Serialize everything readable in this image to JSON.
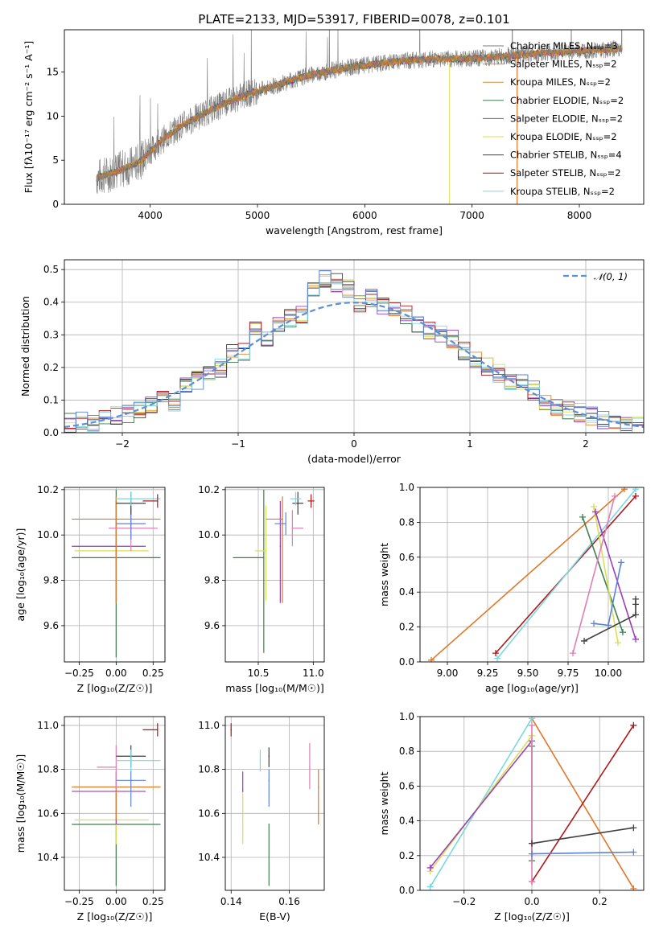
{
  "title": "PLATE=2133, MJD=53917, FIBERID=0078, z=0.101",
  "colors": {
    "Chabrier MILES": "#7a7a7a",
    "Salpeter MILES": "#e8802f",
    "Kroupa MILES": "#d9893a",
    "Chabrier ELODIE": "#3f7f4f",
    "Salpeter ELODIE": "#9a3fb5",
    "Kroupa ELODIE": "#d8df55",
    "Chabrier STELIB": "#404040",
    "Salpeter STELIB": "#b01818",
    "Kroupa STELIB": "#7ad8e0",
    "extra_blue": "#5b84d6",
    "extra_pink": "#e07fb5",
    "extra_orange": "#e0782a",
    "gaussian": "#5b8fd6"
  },
  "chart_data": [
    {
      "type": "line",
      "id": "spectrum",
      "xlabel": "wavelength [Angstrom, rest frame]",
      "ylabel": "Flux [fλ10⁻¹⁷ erg cm⁻² s⁻¹ A⁻¹]",
      "xlim": [
        3200,
        8600
      ],
      "ylim": [
        0,
        19.8
      ],
      "xticks": [
        "4000",
        "5000",
        "6000",
        "7000",
        "8000"
      ],
      "yticks": [
        "0",
        "5",
        "10",
        "15"
      ],
      "legend": [
        "Chabrier MILES, N_SSP=3",
        "Salpeter MILES, N_SSP=2",
        "Kroupa MILES, N_SSP=2",
        "Chabrier ELODIE, N_SSP=2",
        "Salpeter ELODIE, N_SSP=2",
        "Kroupa ELODIE, N_SSP=2",
        "Chabrier STELIB, N_SSP=4",
        "Salpeter STELIB, N_SSP=2",
        "Kroupa STELIB, N_SSP=2"
      ],
      "legend_display": [
        "Chabrier MILES, Nₛₛₚ=3",
        "Salpeter MILES, Nₛₛₚ=2",
        "Kroupa MILES, Nₛₛₚ=2",
        "Chabrier ELODIE, Nₛₛₚ=2",
        "Salpeter ELODIE, Nₛₛₚ=2",
        "Kroupa ELODIE, Nₛₛₚ=2",
        "Chabrier STELIB, Nₛₛₚ=4",
        "Salpeter STELIB, Nₛₛₚ=2",
        "Kroupa STELIB, Nₛₛₚ=2"
      ],
      "legend_position": "top-right",
      "model_trend": {
        "x": [
          3500,
          3700,
          3900,
          4100,
          4300,
          4500,
          4700,
          4900,
          5100,
          5300,
          5500,
          5700,
          5900,
          6100,
          6300,
          6500,
          6700,
          6900,
          7100,
          7300,
          7500,
          7700,
          7900,
          8100,
          8300,
          8400
        ],
        "y": [
          3.0,
          3.8,
          4.8,
          7.2,
          9.0,
          10.3,
          11.5,
          12.5,
          13.2,
          14.0,
          14.7,
          15.2,
          15.6,
          15.9,
          16.2,
          16.4,
          16.5,
          16.5,
          16.6,
          16.8,
          17.0,
          17.2,
          17.3,
          17.5,
          17.6,
          17.7
        ]
      },
      "spikes_to_zero": [
        6790,
        7420
      ]
    },
    {
      "type": "bar",
      "id": "residuals",
      "xlabel": "(data-model)/error",
      "ylabel": "Normed distribution",
      "xlim": [
        -2.5,
        2.5
      ],
      "ylim": [
        0,
        0.53
      ],
      "xticks": [
        "−2",
        "−1",
        "0",
        "1",
        "2"
      ],
      "yticks": [
        "0.0",
        "0.1",
        "0.2",
        "0.3",
        "0.4",
        "0.5"
      ],
      "legend": [
        "𝒩(0, 1)"
      ],
      "legend_position": "top-right",
      "bins": [
        -2.5,
        -2.4,
        -2.3,
        -2.2,
        -2.1,
        -2.0,
        -1.9,
        -1.8,
        -1.7,
        -1.6,
        -1.5,
        -1.4,
        -1.3,
        -1.2,
        -1.1,
        -1.0,
        -0.9,
        -0.8,
        -0.7,
        -0.6,
        -0.5,
        -0.4,
        -0.3,
        -0.2,
        -0.1,
        0.0,
        0.1,
        0.2,
        0.3,
        0.4,
        0.5,
        0.6,
        0.7,
        0.8,
        0.9,
        1.0,
        1.1,
        1.2,
        1.3,
        1.4,
        1.5,
        1.6,
        1.7,
        1.8,
        1.9,
        2.0,
        2.1,
        2.2,
        2.3,
        2.4
      ],
      "values": [
        0.03,
        0.04,
        0.03,
        0.04,
        0.05,
        0.06,
        0.07,
        0.09,
        0.1,
        0.09,
        0.14,
        0.16,
        0.19,
        0.2,
        0.24,
        0.25,
        0.32,
        0.28,
        0.33,
        0.35,
        0.36,
        0.44,
        0.47,
        0.46,
        0.44,
        0.4,
        0.41,
        0.39,
        0.38,
        0.36,
        0.33,
        0.31,
        0.3,
        0.29,
        0.25,
        0.22,
        0.2,
        0.18,
        0.16,
        0.15,
        0.13,
        0.1,
        0.08,
        0.07,
        0.06,
        0.05,
        0.04,
        0.04,
        0.03,
        0.03
      ]
    },
    {
      "type": "scatter",
      "id": "age-vs-Z",
      "xlabel": "Z [log₁₀(Z/Z☉)]",
      "ylabel": "age  [log₁₀(age/yr)]",
      "xlim": [
        -0.35,
        0.33
      ],
      "ylim": [
        9.44,
        10.21
      ],
      "xticks": [
        "−0.25",
        "0.00",
        "0.25"
      ],
      "yticks": [
        "9.6",
        "9.8",
        "10.0",
        "10.2"
      ],
      "points": [
        {
          "x": 0.0,
          "y": 9.9,
          "xerr": [
            0.3,
            0.3
          ],
          "yerr": [
            0.44,
            0.3
          ],
          "color": "#3f7f4f"
        },
        {
          "x": 0.0,
          "y": 9.93,
          "xerr": [
            0.28,
            0.22
          ],
          "yerr": [
            0.23,
            0.2
          ],
          "color": "#d8df55"
        },
        {
          "x": 0.0,
          "y": 9.95,
          "xerr": [
            0.3,
            0.2
          ],
          "yerr": [
            0.25,
            0.2
          ],
          "color": "#9a3fb5"
        },
        {
          "x": 0.0,
          "y": 10.07,
          "xerr": [
            0.3,
            0.3
          ],
          "yerr": [
            0.37,
            0.1
          ],
          "color": "#e0782a"
        },
        {
          "x": 0.1,
          "y": 10.03,
          "xerr": [
            0.15,
            0.18
          ],
          "yerr": [
            0.1,
            0.1
          ],
          "color": "#e07fb5"
        },
        {
          "x": 0.1,
          "y": 10.05,
          "xerr": [
            0.1,
            0.1
          ],
          "yerr": [
            0.07,
            0.07
          ],
          "color": "#5b84d6"
        },
        {
          "x": 0.1,
          "y": 10.14,
          "xerr": [
            0.1,
            0.1
          ],
          "yerr": [
            0.05,
            0.05
          ],
          "color": "#404040"
        },
        {
          "x": 0.1,
          "y": 10.16,
          "xerr": [
            0.1,
            0.2
          ],
          "yerr": [
            0.03,
            0.03
          ],
          "color": "#7ad8e0"
        },
        {
          "x": 0.28,
          "y": 10.15,
          "xerr": [
            0.1,
            0.0
          ],
          "yerr": [
            0.03,
            0.03
          ],
          "color": "#b01818"
        }
      ]
    },
    {
      "type": "scatter",
      "id": "age-vs-mass",
      "xlabel": "mass [log₁₀(M/M☉)]",
      "ylabel": "",
      "xlim": [
        10.2,
        11.1
      ],
      "ylim": [
        9.44,
        10.21
      ],
      "xticks": [
        "10.5",
        "11.0"
      ],
      "yticks": [
        "9.6",
        "9.8",
        "10.0",
        "10.2"
      ],
      "points": [
        {
          "x": 10.55,
          "y": 9.9,
          "xerr": [
            0.28,
            0.0
          ],
          "yerr": [
            0.42,
            0.3
          ],
          "color": "#3f7f4f"
        },
        {
          "x": 10.57,
          "y": 9.93,
          "xerr": [
            0.1,
            0.0
          ],
          "yerr": [
            0.22,
            0.2
          ],
          "color": "#d8df55"
        },
        {
          "x": 10.7,
          "y": 9.95,
          "xerr": [
            0.0,
            0.0
          ],
          "yerr": [
            0.25,
            0.2
          ],
          "color": "#9a3fb5"
        },
        {
          "x": 10.72,
          "y": 10.07,
          "xerr": [
            0.15,
            0.0
          ],
          "yerr": [
            0.37,
            0.1
          ],
          "color": "#e0782a"
        },
        {
          "x": 10.81,
          "y": 10.03,
          "xerr": [
            0.0,
            0.1
          ],
          "yerr": [
            0.08,
            0.08
          ],
          "color": "#e07fb5"
        },
        {
          "x": 10.75,
          "y": 10.05,
          "xerr": [
            0.1,
            0.0
          ],
          "yerr": [
            0.05,
            0.05
          ],
          "color": "#5b84d6"
        },
        {
          "x": 10.86,
          "y": 10.14,
          "xerr": [
            0.05,
            0.05
          ],
          "yerr": [
            0.05,
            0.05
          ],
          "color": "#404040"
        },
        {
          "x": 10.84,
          "y": 10.16,
          "xerr": [
            0.05,
            0.05
          ],
          "yerr": [
            0.03,
            0.03
          ],
          "color": "#7ad8e0"
        },
        {
          "x": 10.98,
          "y": 10.15,
          "xerr": [
            0.03,
            0.03
          ],
          "yerr": [
            0.03,
            0.03
          ],
          "color": "#b01818"
        }
      ]
    },
    {
      "type": "line",
      "id": "weight-vs-age",
      "xlabel": "age  [log₁₀(age/yr)]",
      "ylabel": "mass weight",
      "xlim": [
        8.83,
        10.22
      ],
      "ylim": [
        0,
        1
      ],
      "xticks": [
        "9.00",
        "9.25",
        "9.50",
        "9.75",
        "10.00"
      ],
      "yticks": [
        "0.0",
        "0.2",
        "0.4",
        "0.6",
        "0.8",
        "1.0"
      ],
      "series": [
        {
          "color": "#e0782a",
          "x": [
            8.9,
            10.1
          ],
          "y": [
            0.01,
            0.99
          ]
        },
        {
          "color": "#b01818",
          "x": [
            9.3,
            10.17
          ],
          "y": [
            0.05,
            0.95
          ]
        },
        {
          "color": "#7ad8e0",
          "x": [
            9.31,
            10.17
          ],
          "y": [
            0.02,
            0.99
          ]
        },
        {
          "color": "#3f7f4f",
          "x": [
            9.84,
            10.09
          ],
          "y": [
            0.83,
            0.17
          ]
        },
        {
          "color": "#d8df55",
          "x": [
            9.91,
            10.06
          ],
          "y": [
            0.89,
            0.11
          ]
        },
        {
          "color": "#9a3fb5",
          "x": [
            9.92,
            10.17
          ],
          "y": [
            0.86,
            0.13
          ]
        },
        {
          "color": "#e07fb5",
          "x": [
            9.78,
            10.04
          ],
          "y": [
            0.05,
            0.95
          ]
        },
        {
          "color": "#5b84d6",
          "x": [
            9.91,
            10.0,
            10.08
          ],
          "y": [
            0.22,
            0.21,
            0.57
          ]
        },
        {
          "color": "#404040",
          "x": [
            9.85,
            10.17,
            10.17,
            10.17
          ],
          "y": [
            0.12,
            0.27,
            0.33,
            0.36
          ]
        }
      ]
    },
    {
      "type": "scatter",
      "id": "mass-vs-Z",
      "xlabel": "Z [log₁₀(Z/Z☉)]",
      "ylabel": "mass [log₁₀(M/M☉)]",
      "xlim": [
        -0.35,
        0.33
      ],
      "ylim": [
        10.25,
        11.04
      ],
      "xticks": [
        "−0.25",
        "0.00",
        "0.25"
      ],
      "yticks": [
        "10.4",
        "10.6",
        "10.8",
        "11.0"
      ],
      "points": [
        {
          "x": 0.0,
          "y": 10.55,
          "xerr": [
            0.3,
            0.3
          ],
          "yerr": [
            0.28,
            0.0
          ],
          "color": "#3f7f4f"
        },
        {
          "x": 0.0,
          "y": 10.57,
          "xerr": [
            0.28,
            0.22
          ],
          "yerr": [
            0.11,
            0.0
          ],
          "color": "#d8df55"
        },
        {
          "x": 0.0,
          "y": 10.7,
          "xerr": [
            0.3,
            0.2
          ],
          "yerr": [
            0.15,
            0.09
          ],
          "color": "#9a3fb5"
        },
        {
          "x": 0.0,
          "y": 10.72,
          "xerr": [
            0.3,
            0.3
          ],
          "yerr": [
            0.15,
            0.0
          ],
          "color": "#e0782a"
        },
        {
          "x": 0.0,
          "y": 10.81,
          "xerr": [
            0.13,
            0.0
          ],
          "yerr": [
            0.1,
            0.1
          ],
          "color": "#e07fb5"
        },
        {
          "x": 0.1,
          "y": 10.75,
          "xerr": [
            0.1,
            0.1
          ],
          "yerr": [
            0.12,
            0.05
          ],
          "color": "#5b84d6"
        },
        {
          "x": 0.1,
          "y": 10.86,
          "xerr": [
            0.1,
            0.1
          ],
          "yerr": [
            0.05,
            0.05
          ],
          "color": "#404040"
        },
        {
          "x": 0.1,
          "y": 10.84,
          "xerr": [
            0.1,
            0.2
          ],
          "yerr": [
            0.05,
            0.05
          ],
          "color": "#7ad8e0"
        },
        {
          "x": 0.28,
          "y": 10.98,
          "xerr": [
            0.1,
            0.0
          ],
          "yerr": [
            0.03,
            0.03
          ],
          "color": "#b01818"
        }
      ]
    },
    {
      "type": "scatter",
      "id": "mass-vs-ebv",
      "xlabel": "E(B-V)",
      "ylabel": "",
      "xlim": [
        0.138,
        0.172
      ],
      "ylim": [
        10.25,
        11.04
      ],
      "xticks": [
        "0.14",
        "0.16"
      ],
      "yticks": [
        "10.4",
        "10.6",
        "10.8",
        "11.0"
      ],
      "points": [
        {
          "x": 0.153,
          "y": 10.55,
          "yerr": [
            0.28,
            0.0
          ],
          "color": "#3f7f4f"
        },
        {
          "x": 0.144,
          "y": 10.57,
          "yerr": [
            0.11,
            0.13
          ],
          "color": "#d8df55"
        },
        {
          "x": 0.144,
          "y": 10.7,
          "yerr": [
            0.0,
            0.09
          ],
          "color": "#9a3fb5"
        },
        {
          "x": 0.17,
          "y": 10.72,
          "yerr": [
            0.17,
            0.08
          ],
          "color": "#e0782a"
        },
        {
          "x": 0.167,
          "y": 10.81,
          "yerr": [
            0.1,
            0.11
          ],
          "color": "#e07fb5"
        },
        {
          "x": 0.153,
          "y": 10.75,
          "yerr": [
            0.12,
            0.05
          ],
          "color": "#5b84d6"
        },
        {
          "x": 0.153,
          "y": 10.86,
          "yerr": [
            0.05,
            0.04
          ],
          "color": "#404040"
        },
        {
          "x": 0.15,
          "y": 10.84,
          "yerr": [
            0.05,
            0.05
          ],
          "color": "#7ad8e0"
        },
        {
          "x": 0.14,
          "y": 10.98,
          "yerr": [
            0.03,
            0.03
          ],
          "color": "#b01818"
        }
      ]
    },
    {
      "type": "line",
      "id": "weight-vs-Z",
      "xlabel": "Z [log₁₀(Z/Z☉)]",
      "ylabel": "mass weight",
      "xlim": [
        -0.33,
        0.33
      ],
      "ylim": [
        0,
        1
      ],
      "xticks": [
        "−0.2",
        "0.0",
        "0.2"
      ],
      "yticks": [
        "0.0",
        "0.2",
        "0.4",
        "0.6",
        "0.8",
        "1.0"
      ],
      "series": [
        {
          "color": "#e0782a",
          "x": [
            0.0,
            0.3
          ],
          "y": [
            0.99,
            0.01
          ]
        },
        {
          "color": "#b01818",
          "x": [
            0.0,
            0.3
          ],
          "y": [
            0.05,
            0.95
          ]
        },
        {
          "color": "#7ad8e0",
          "x": [
            -0.3,
            0.0
          ],
          "y": [
            0.02,
            0.99
          ]
        },
        {
          "color": "#3f7f4f",
          "x": [
            0.0,
            0.0
          ],
          "y": [
            0.17,
            0.83
          ]
        },
        {
          "color": "#d8df55",
          "x": [
            -0.3,
            0.0
          ],
          "y": [
            0.11,
            0.89
          ]
        },
        {
          "color": "#9a3fb5",
          "x": [
            -0.3,
            0.0
          ],
          "y": [
            0.13,
            0.86
          ]
        },
        {
          "color": "#e07fb5",
          "x": [
            0.0,
            0.0
          ],
          "y": [
            0.05,
            0.95
          ]
        },
        {
          "color": "#5b84d6",
          "x": [
            0.0,
            0.3
          ],
          "y": [
            0.21,
            0.22
          ]
        },
        {
          "color": "#404040",
          "x": [
            0.0,
            0.3
          ],
          "y": [
            0.27,
            0.36
          ]
        }
      ]
    }
  ]
}
